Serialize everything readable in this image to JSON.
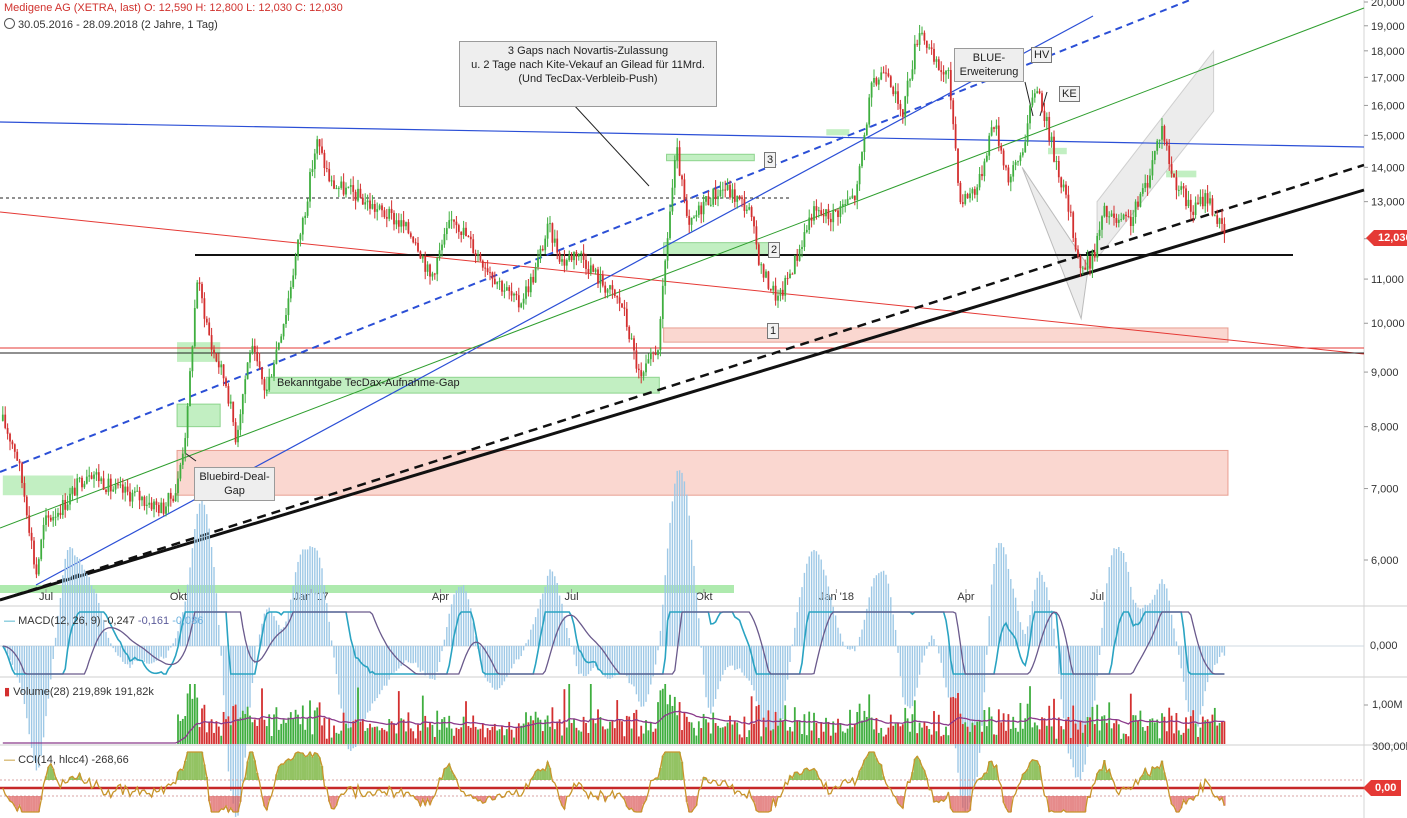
{
  "header": {
    "title": "Medigene AG (XETRA, last)  O: 12,590  H: 12,800  L: 12,030  C: 12,030",
    "range": "30.05.2016 - 28.09.2018  (2 Jahre, 1 Tag)"
  },
  "annotations": {
    "gaps_note_1": "3 Gaps nach Novartis-Zulassung",
    "gaps_note_2": "u. 2 Tage nach Kite-Vekauf an Gilead für 11Mrd.",
    "gaps_note_3": "(Und TecDax-Verbleib-Push)",
    "blue_1": "BLUE-",
    "blue_2": "Erweiterung",
    "hv": "HV",
    "ke": "KE",
    "gap3": "3",
    "gap2": "2",
    "gap1": "1",
    "tecdax_gap": "Bekanntgabe TecDax-Aufnahme-Gap",
    "bluebird_1": "Bluebird-Deal-",
    "bluebird_2": "Gap"
  },
  "price_tag": "12,030",
  "panels": {
    "macd": {
      "name": "MACD(12, 26, 9)",
      "v1": "-0,247",
      "v2": "-0,161",
      "v3": "-0,086",
      "zero_label": "0,000"
    },
    "volume": {
      "name": "Volume(28)",
      "v1": "219,89k",
      "v2": "191,82k",
      "tick": "1,00M",
      "tick_top": "300,00k"
    },
    "cci": {
      "name": "CCI(14, hlcc4)",
      "v1": "-268,66",
      "flag": "0,00"
    }
  },
  "colors": {
    "up": "#3fae3f",
    "down": "#d32f2f",
    "blue": "#2b4fd6",
    "green_line": "#2e9e2e",
    "red_line": "#e53935"
  },
  "chart_data": {
    "type": "candlestick",
    "title": "Medigene AG (XETRA, last)",
    "price_axis": {
      "scale": "log",
      "ticks": [
        "6,000",
        "7,000",
        "8,000",
        "9,000",
        "10,000",
        "11,000",
        "12,000",
        "13,000",
        "14,000",
        "15,000",
        "16,000",
        "17,000",
        "18,000",
        "19,000",
        "20,000"
      ]
    },
    "x_ticks": [
      "Jul",
      "Okt",
      "Jan '17",
      "Apr",
      "Jul",
      "Okt",
      "Jan '18",
      "Apr",
      "Jul"
    ],
    "ohlc_last": {
      "open": 12.59,
      "high": 12.8,
      "low": 12.03,
      "close": 12.03
    },
    "price_path": [
      [
        "2016-06-01",
        8.1
      ],
      [
        "2016-06-10",
        7.6
      ],
      [
        "2016-06-17",
        6.8
      ],
      [
        "2016-06-24",
        5.8
      ],
      [
        "2016-06-30",
        6.5
      ],
      [
        "2016-07-15",
        6.8
      ],
      [
        "2016-07-31",
        7.3
      ],
      [
        "2016-08-15",
        7.0
      ],
      [
        "2016-09-01",
        6.9
      ],
      [
        "2016-09-20",
        6.7
      ],
      [
        "2016-09-30",
        7.0
      ],
      [
        "2016-10-07",
        8.1
      ],
      [
        "2016-10-14",
        11.0
      ],
      [
        "2016-10-24",
        9.5
      ],
      [
        "2016-11-03",
        8.8
      ],
      [
        "2016-11-10",
        7.8
      ],
      [
        "2016-11-20",
        9.5
      ],
      [
        "2016-12-01",
        8.6
      ],
      [
        "2016-12-15",
        10.3
      ],
      [
        "2016-12-28",
        12.8
      ],
      [
        "2017-01-05",
        14.8
      ],
      [
        "2017-01-15",
        13.5
      ],
      [
        "2017-02-01",
        13.2
      ],
      [
        "2017-02-15",
        12.8
      ],
      [
        "2017-03-01",
        12.5
      ],
      [
        "2017-03-15",
        12.0
      ],
      [
        "2017-03-25",
        11.0
      ],
      [
        "2017-04-10",
        12.6
      ],
      [
        "2017-04-25",
        11.7
      ],
      [
        "2017-05-10",
        11.0
      ],
      [
        "2017-05-25",
        10.4
      ],
      [
        "2017-06-05",
        11.1
      ],
      [
        "2017-06-15",
        12.3
      ],
      [
        "2017-06-25",
        11.4
      ],
      [
        "2017-07-05",
        11.7
      ],
      [
        "2017-07-20",
        11.0
      ],
      [
        "2017-08-05",
        10.4
      ],
      [
        "2017-08-18",
        8.8
      ],
      [
        "2017-08-31",
        9.6
      ],
      [
        "2017-09-05",
        11.8
      ],
      [
        "2017-09-12",
        14.5
      ],
      [
        "2017-09-20",
        12.2
      ],
      [
        "2017-10-01",
        13.0
      ],
      [
        "2017-10-15",
        13.4
      ],
      [
        "2017-11-01",
        12.8
      ],
      [
        "2017-11-10",
        11.2
      ],
      [
        "2017-11-22",
        10.5
      ],
      [
        "2017-12-05",
        11.6
      ],
      [
        "2017-12-15",
        12.7
      ],
      [
        "2017-12-28",
        12.6
      ],
      [
        "2018-01-15",
        13.2
      ],
      [
        "2018-01-25",
        16.5
      ],
      [
        "2018-02-05",
        17.5
      ],
      [
        "2018-02-15",
        15.5
      ],
      [
        "2018-02-28",
        19.0
      ],
      [
        "2018-03-10",
        17.5
      ],
      [
        "2018-03-20",
        17.0
      ],
      [
        "2018-03-28",
        13.0
      ],
      [
        "2018-04-10",
        13.5
      ],
      [
        "2018-04-20",
        15.5
      ],
      [
        "2018-05-01",
        13.6
      ],
      [
        "2018-05-10",
        14.5
      ],
      [
        "2018-05-20",
        16.8
      ],
      [
        "2018-05-31",
        14.6
      ],
      [
        "2018-06-10",
        13.0
      ],
      [
        "2018-06-20",
        11.2
      ],
      [
        "2018-06-28",
        11.5
      ],
      [
        "2018-07-06",
        12.7
      ],
      [
        "2018-07-15",
        12.4
      ],
      [
        "2018-07-25",
        12.5
      ],
      [
        "2018-08-05",
        13.6
      ],
      [
        "2018-08-15",
        15.3
      ],
      [
        "2018-08-22",
        13.8
      ],
      [
        "2018-09-05",
        12.7
      ],
      [
        "2018-09-15",
        13.2
      ],
      [
        "2018-09-28",
        12.03
      ]
    ],
    "horizontal_levels": [
      11.6,
      13.1,
      9.45,
      9.55
    ],
    "gap_zones": [
      {
        "label": "Bekanntgabe TecDax-Aufnahme-Gap",
        "from": 8.6,
        "to": 8.9,
        "color": "green"
      },
      {
        "label": "Bluebird-Deal-Gap",
        "from": 8.0,
        "to": 8.4,
        "color": "green"
      },
      {
        "label": "1",
        "from": 9.6,
        "to": 9.9,
        "color": "red"
      },
      {
        "label": "2",
        "from": 11.6,
        "to": 11.9,
        "color": "green"
      },
      {
        "label": "3",
        "from": 14.2,
        "to": 14.4,
        "color": "green"
      },
      {
        "label": "",
        "from": 6.9,
        "to": 7.6,
        "color": "red"
      }
    ],
    "indicators": [
      "MACD(12, 26, 9)",
      "Volume(28)",
      "CCI(14, hlcc4)"
    ]
  }
}
